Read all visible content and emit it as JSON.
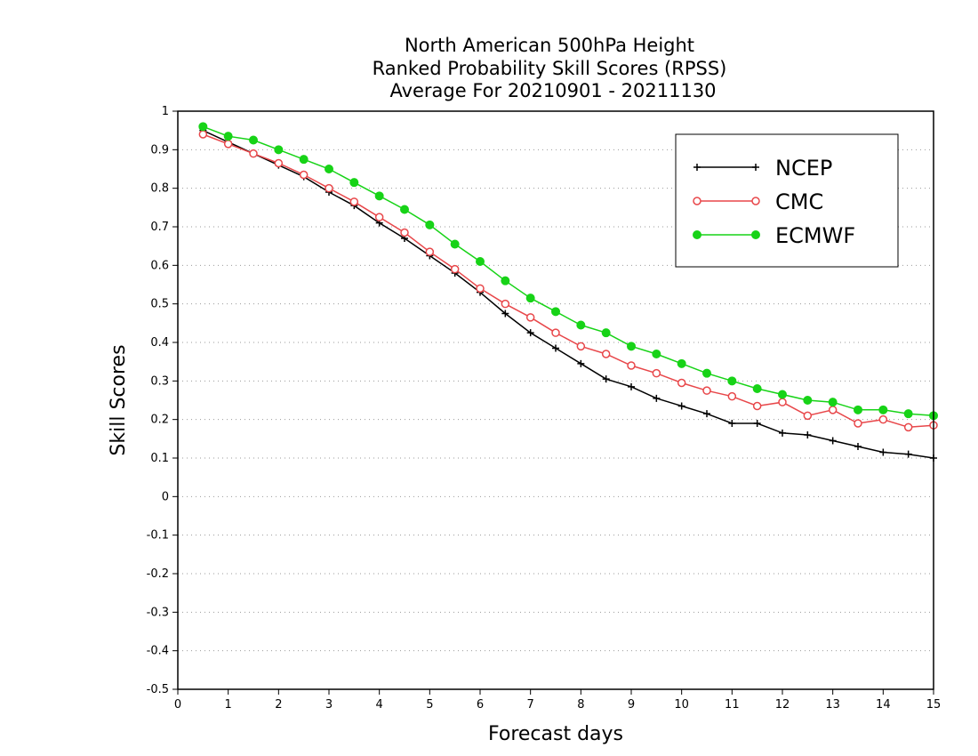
{
  "chart_data": {
    "type": "line",
    "title_lines": [
      "North American 500hPa Height",
      "Ranked Probability Skill Scores (RPSS)",
      "Average For 20210901 - 20211130"
    ],
    "xlabel": "Forecast days",
    "ylabel": "Skill Scores",
    "xlim": [
      0,
      15
    ],
    "ylim": [
      -0.5,
      1
    ],
    "x_ticks": [
      "0",
      "1",
      "2",
      "3",
      "4",
      "5",
      "6",
      "7",
      "8",
      "9",
      "10",
      "11",
      "12",
      "13",
      "14",
      "15"
    ],
    "y_ticks": [
      "-0.5",
      "-0.4",
      "-0.3",
      "-0.2",
      "-0.1",
      "0",
      "0.1",
      "0.2",
      "0.3",
      "0.4",
      "0.5",
      "0.6",
      "0.7",
      "0.8",
      "0.9",
      "1"
    ],
    "grid": "horizontal dotted",
    "legend_position": "top-right",
    "x": [
      0.5,
      1,
      1.5,
      2,
      2.5,
      3,
      3.5,
      4,
      4.5,
      5,
      5.5,
      6,
      6.5,
      7,
      7.5,
      8,
      8.5,
      9,
      9.5,
      10,
      10.5,
      11,
      11.5,
      12,
      12.5,
      13,
      13.5,
      14,
      14.5,
      15
    ],
    "series": [
      {
        "name": "NCEP",
        "color": "#000000",
        "marker": "plus",
        "values": [
          0.95,
          0.92,
          0.89,
          0.86,
          0.83,
          0.79,
          0.755,
          0.71,
          0.67,
          0.625,
          0.58,
          0.53,
          0.475,
          0.425,
          0.385,
          0.345,
          0.305,
          0.285,
          0.255,
          0.235,
          0.215,
          0.19,
          0.19,
          0.165,
          0.16,
          0.145,
          0.13,
          0.115,
          0.11,
          0.1
        ]
      },
      {
        "name": "CMC",
        "color": "#e8474a",
        "marker": "open-circle",
        "values": [
          0.94,
          0.915,
          0.89,
          0.865,
          0.835,
          0.8,
          0.765,
          0.725,
          0.685,
          0.635,
          0.59,
          0.54,
          0.5,
          0.465,
          0.425,
          0.39,
          0.37,
          0.34,
          0.32,
          0.295,
          0.275,
          0.26,
          0.235,
          0.245,
          0.21,
          0.225,
          0.19,
          0.2,
          0.18,
          0.185
        ]
      },
      {
        "name": "ECMWF",
        "color": "#17d317",
        "marker": "filled-circle",
        "values": [
          0.96,
          0.935,
          0.925,
          0.9,
          0.875,
          0.85,
          0.815,
          0.78,
          0.745,
          0.705,
          0.655,
          0.61,
          0.56,
          0.515,
          0.48,
          0.445,
          0.425,
          0.39,
          0.37,
          0.345,
          0.32,
          0.3,
          0.28,
          0.265,
          0.25,
          0.245,
          0.225,
          0.225,
          0.215,
          0.21
        ]
      }
    ]
  }
}
